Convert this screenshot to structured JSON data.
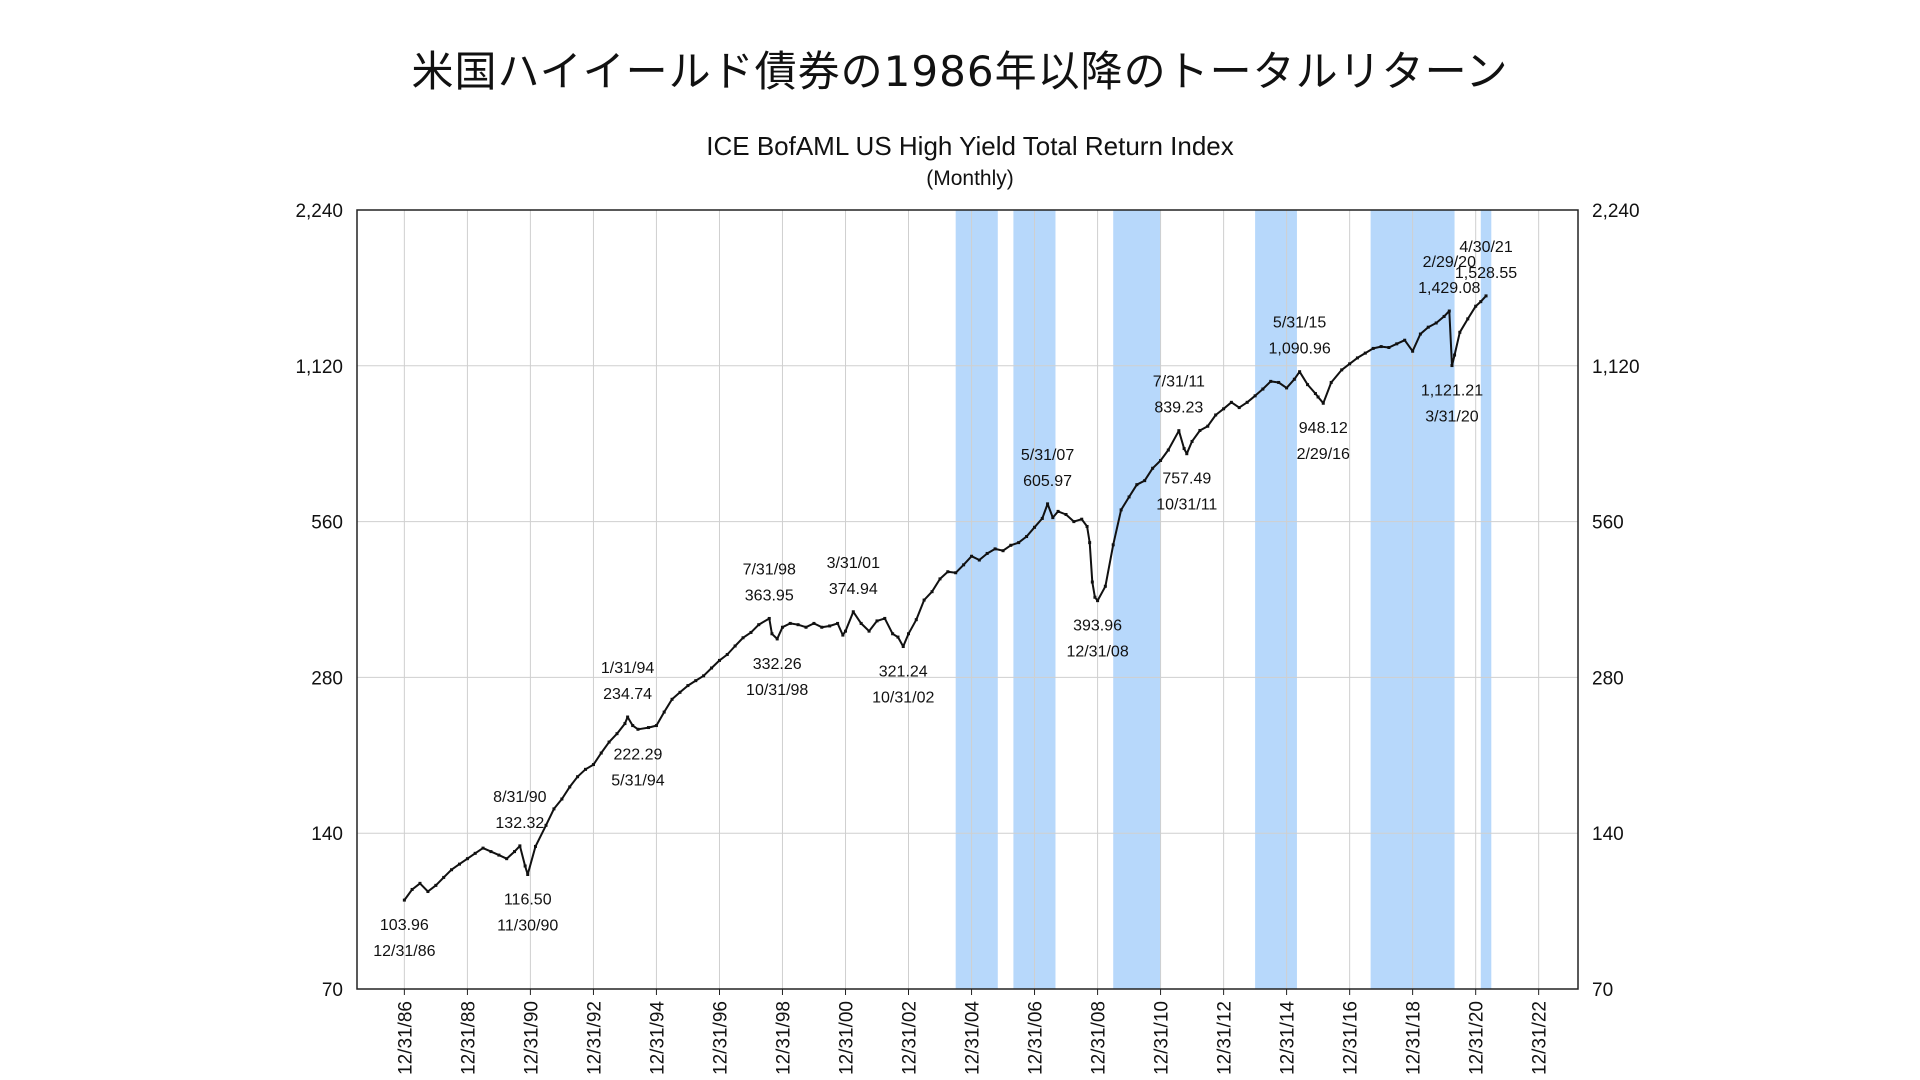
{
  "page": {
    "heading": "米国ハイイールド債券の1986年以降のトータルリターン"
  },
  "chart_data": {
    "type": "line",
    "title": "ICE BofAML US High Yield Total Return Index",
    "subtitle": "(Monthly)",
    "y_scale": "log",
    "ylim": [
      70,
      2240
    ],
    "y_ticks": [
      70,
      140,
      280,
      560,
      1120,
      2240
    ],
    "y_tick_labels": [
      "70",
      "140",
      "280",
      "560",
      "1,120",
      "2,240"
    ],
    "xlim": [
      "1985-06-30",
      "2024-03-31"
    ],
    "x_ticks": [
      "1986-12-31",
      "1988-12-31",
      "1990-12-31",
      "1992-12-31",
      "1994-12-31",
      "1996-12-31",
      "1998-12-31",
      "2000-12-31",
      "2002-12-31",
      "2004-12-31",
      "2006-12-31",
      "2008-12-31",
      "2010-12-31",
      "2012-12-31",
      "2014-12-31",
      "2016-12-31",
      "2018-12-31",
      "2020-12-31",
      "2022-12-31"
    ],
    "x_tick_labels": [
      "12/31/86",
      "12/31/88",
      "12/31/90",
      "12/31/92",
      "12/31/94",
      "12/31/96",
      "12/31/98",
      "12/31/00",
      "12/31/02",
      "12/31/04",
      "12/31/06",
      "12/31/08",
      "12/31/10",
      "12/31/12",
      "12/31/14",
      "12/31/16",
      "12/31/18",
      "12/31/20",
      "12/31/22"
    ],
    "grid": true,
    "colors": {
      "line": "#111111",
      "shade": "#b7d8fb",
      "grid": "#cfcfcf"
    },
    "shaded_periods": [
      [
        "2004-06-30",
        "2005-10-31"
      ],
      [
        "2006-04-30",
        "2007-08-31"
      ],
      [
        "2009-06-30",
        "2010-12-31"
      ],
      [
        "2013-12-31",
        "2015-04-30"
      ],
      [
        "2017-08-31",
        "2020-04-30"
      ],
      [
        "2021-02-28",
        "2021-06-30"
      ]
    ],
    "series": [
      {
        "points": [
          [
            "1986-12-31",
            103.96
          ],
          [
            "1987-03-31",
            109
          ],
          [
            "1987-06-30",
            112
          ],
          [
            "1987-09-30",
            108
          ],
          [
            "1987-12-31",
            111
          ],
          [
            "1988-03-31",
            115
          ],
          [
            "1988-06-30",
            119
          ],
          [
            "1988-09-30",
            122
          ],
          [
            "1988-12-31",
            125
          ],
          [
            "1989-03-31",
            128
          ],
          [
            "1989-06-30",
            131
          ],
          [
            "1989-09-30",
            129
          ],
          [
            "1989-12-31",
            127
          ],
          [
            "1990-03-31",
            125
          ],
          [
            "1990-06-30",
            129
          ],
          [
            "1990-08-31",
            132.32
          ],
          [
            "1990-10-31",
            121
          ],
          [
            "1990-11-30",
            116.5
          ],
          [
            "1991-02-28",
            132
          ],
          [
            "1991-06-30",
            145
          ],
          [
            "1991-09-30",
            156
          ],
          [
            "1991-12-31",
            163
          ],
          [
            "1992-03-31",
            172
          ],
          [
            "1992-06-30",
            180
          ],
          [
            "1992-09-30",
            186
          ],
          [
            "1992-12-31",
            190
          ],
          [
            "1993-03-31",
            200
          ],
          [
            "1993-06-30",
            210
          ],
          [
            "1993-09-30",
            218
          ],
          [
            "1993-12-31",
            228
          ],
          [
            "1994-01-31",
            234.74
          ],
          [
            "1994-03-31",
            226
          ],
          [
            "1994-05-31",
            222.29
          ],
          [
            "1994-09-30",
            224
          ],
          [
            "1994-12-31",
            226
          ],
          [
            "1995-03-31",
            240
          ],
          [
            "1995-06-30",
            254
          ],
          [
            "1995-09-30",
            262
          ],
          [
            "1995-12-31",
            270
          ],
          [
            "1996-03-31",
            276
          ],
          [
            "1996-06-30",
            282
          ],
          [
            "1996-09-30",
            292
          ],
          [
            "1996-12-31",
            302
          ],
          [
            "1997-03-31",
            310
          ],
          [
            "1997-06-30",
            322
          ],
          [
            "1997-09-30",
            334
          ],
          [
            "1997-12-31",
            342
          ],
          [
            "1998-03-31",
            354
          ],
          [
            "1998-07-31",
            363.95
          ],
          [
            "1998-08-31",
            340
          ],
          [
            "1998-10-31",
            332.26
          ],
          [
            "1998-12-31",
            350
          ],
          [
            "1999-03-31",
            356
          ],
          [
            "1999-06-30",
            354
          ],
          [
            "1999-09-30",
            350
          ],
          [
            "1999-12-31",
            356
          ],
          [
            "2000-03-31",
            350
          ],
          [
            "2000-06-30",
            352
          ],
          [
            "2000-09-30",
            356
          ],
          [
            "2000-11-30",
            338
          ],
          [
            "2000-12-31",
            344
          ],
          [
            "2001-03-31",
            374.94
          ],
          [
            "2001-06-30",
            356
          ],
          [
            "2001-09-30",
            344
          ],
          [
            "2001-12-31",
            360
          ],
          [
            "2002-03-31",
            364
          ],
          [
            "2002-06-30",
            340
          ],
          [
            "2002-08-31",
            335
          ],
          [
            "2002-10-31",
            321.24
          ],
          [
            "2002-12-31",
            340
          ],
          [
            "2003-03-31",
            362
          ],
          [
            "2003-06-30",
            395
          ],
          [
            "2003-09-30",
            410
          ],
          [
            "2003-12-31",
            434
          ],
          [
            "2004-03-31",
            448
          ],
          [
            "2004-06-30",
            446
          ],
          [
            "2004-09-30",
            462
          ],
          [
            "2004-12-31",
            480
          ],
          [
            "2005-03-31",
            472
          ],
          [
            "2005-06-30",
            486
          ],
          [
            "2005-09-30",
            496
          ],
          [
            "2005-12-31",
            492
          ],
          [
            "2006-03-31",
            504
          ],
          [
            "2006-06-30",
            510
          ],
          [
            "2006-09-30",
            524
          ],
          [
            "2006-12-31",
            546
          ],
          [
            "2007-03-31",
            568
          ],
          [
            "2007-05-31",
            605.97
          ],
          [
            "2007-07-31",
            570
          ],
          [
            "2007-09-30",
            586
          ],
          [
            "2007-12-31",
            578
          ],
          [
            "2008-03-31",
            560
          ],
          [
            "2008-06-30",
            566
          ],
          [
            "2008-08-31",
            548
          ],
          [
            "2008-09-30",
            510
          ],
          [
            "2008-10-31",
            428
          ],
          [
            "2008-11-30",
            400
          ],
          [
            "2008-12-31",
            393.96
          ],
          [
            "2009-03-31",
            420
          ],
          [
            "2009-06-30",
            505
          ],
          [
            "2009-09-30",
            590
          ],
          [
            "2009-12-31",
            625
          ],
          [
            "2010-03-31",
            660
          ],
          [
            "2010-06-30",
            672
          ],
          [
            "2010-09-30",
            710
          ],
          [
            "2010-12-31",
            735
          ],
          [
            "2011-03-31",
            770
          ],
          [
            "2011-07-31",
            839.23
          ],
          [
            "2011-09-30",
            775
          ],
          [
            "2011-10-31",
            757.49
          ],
          [
            "2011-12-31",
            800
          ],
          [
            "2012-03-31",
            840
          ],
          [
            "2012-06-30",
            856
          ],
          [
            "2012-09-30",
            900
          ],
          [
            "2012-12-31",
            925
          ],
          [
            "2013-03-31",
            952
          ],
          [
            "2013-06-30",
            930
          ],
          [
            "2013-09-30",
            952
          ],
          [
            "2013-12-31",
            980
          ],
          [
            "2014-03-31",
            1010
          ],
          [
            "2014-06-30",
            1045
          ],
          [
            "2014-09-30",
            1040
          ],
          [
            "2014-12-31",
            1015
          ],
          [
            "2015-03-31",
            1055
          ],
          [
            "2015-05-31",
            1090.96
          ],
          [
            "2015-08-31",
            1030
          ],
          [
            "2015-11-30",
            990
          ],
          [
            "2015-12-31",
            975
          ],
          [
            "2016-02-29",
            948.12
          ],
          [
            "2016-05-31",
            1040
          ],
          [
            "2016-09-30",
            1100
          ],
          [
            "2016-12-31",
            1130
          ],
          [
            "2017-03-31",
            1160
          ],
          [
            "2017-06-30",
            1185
          ],
          [
            "2017-09-30",
            1210
          ],
          [
            "2017-12-31",
            1220
          ],
          [
            "2018-03-31",
            1215
          ],
          [
            "2018-06-30",
            1235
          ],
          [
            "2018-09-30",
            1255
          ],
          [
            "2018-12-31",
            1195
          ],
          [
            "2019-03-31",
            1290
          ],
          [
            "2019-06-30",
            1330
          ],
          [
            "2019-09-30",
            1355
          ],
          [
            "2019-12-31",
            1395
          ],
          [
            "2020-02-29",
            1429.08
          ],
          [
            "2020-03-31",
            1121.21
          ],
          [
            "2020-04-30",
            1175
          ],
          [
            "2020-06-30",
            1300
          ],
          [
            "2020-09-30",
            1380
          ],
          [
            "2020-12-31",
            1460
          ],
          [
            "2021-02-28",
            1490
          ],
          [
            "2021-04-30",
            1528.55
          ]
        ]
      }
    ],
    "annotations": [
      {
        "date": "1986-12-31",
        "value": 103.96,
        "value_label": "103.96",
        "date_label": "12/31/86",
        "pos": "below",
        "order": "value-first"
      },
      {
        "date": "1990-08-31",
        "value": 132.32,
        "value_label": "132.32",
        "date_label": "8/31/90",
        "pos": "above",
        "order": "date-first"
      },
      {
        "date": "1990-11-30",
        "value": 116.5,
        "value_label": "116.50",
        "date_label": "11/30/90",
        "pos": "below",
        "order": "value-first"
      },
      {
        "date": "1994-01-31",
        "value": 234.74,
        "value_label": "234.74",
        "date_label": "1/31/94",
        "pos": "above",
        "order": "date-first"
      },
      {
        "date": "1994-05-31",
        "value": 222.29,
        "value_label": "222.29",
        "date_label": "5/31/94",
        "pos": "below",
        "order": "value-first"
      },
      {
        "date": "1998-07-31",
        "value": 363.95,
        "value_label": "363.95",
        "date_label": "7/31/98",
        "pos": "above",
        "order": "date-first"
      },
      {
        "date": "1998-10-31",
        "value": 332.26,
        "value_label": "332.26",
        "date_label": "10/31/98",
        "pos": "below",
        "order": "value-first"
      },
      {
        "date": "2001-03-31",
        "value": 374.94,
        "value_label": "374.94",
        "date_label": "3/31/01",
        "pos": "above",
        "order": "date-first"
      },
      {
        "date": "2002-10-31",
        "value": 321.24,
        "value_label": "321.24",
        "date_label": "10/31/02",
        "pos": "below",
        "order": "value-first"
      },
      {
        "date": "2007-05-31",
        "value": 605.97,
        "value_label": "605.97",
        "date_label": "5/31/07",
        "pos": "above",
        "order": "date-first"
      },
      {
        "date": "2008-12-31",
        "value": 393.96,
        "value_label": "393.96",
        "date_label": "12/31/08",
        "pos": "below",
        "order": "value-first"
      },
      {
        "date": "2011-07-31",
        "value": 839.23,
        "value_label": "839.23",
        "date_label": "7/31/11",
        "pos": "above",
        "order": "date-first"
      },
      {
        "date": "2011-10-31",
        "value": 757.49,
        "value_label": "757.49",
        "date_label": "10/31/11",
        "pos": "below",
        "order": "value-first"
      },
      {
        "date": "2015-05-31",
        "value": 1090.96,
        "value_label": "1,090.96",
        "date_label": "5/31/15",
        "pos": "above",
        "order": "date-first"
      },
      {
        "date": "2016-02-29",
        "value": 948.12,
        "value_label": "948.12",
        "date_label": "2/29/16",
        "pos": "below",
        "order": "value-first"
      },
      {
        "date": "2020-02-29",
        "value": 1429.08,
        "value_label": "1,429.08",
        "date_label": "2/29/20",
        "pos": "above",
        "order": "date-first"
      },
      {
        "date": "2020-03-31",
        "value": 1121.21,
        "value_label": "1,121.21",
        "date_label": "3/31/20",
        "pos": "below",
        "order": "value-first"
      },
      {
        "date": "2021-04-30",
        "value": 1528.55,
        "value_label": "1,528.55",
        "date_label": "4/30/21",
        "pos": "above",
        "order": "date-first"
      }
    ]
  }
}
